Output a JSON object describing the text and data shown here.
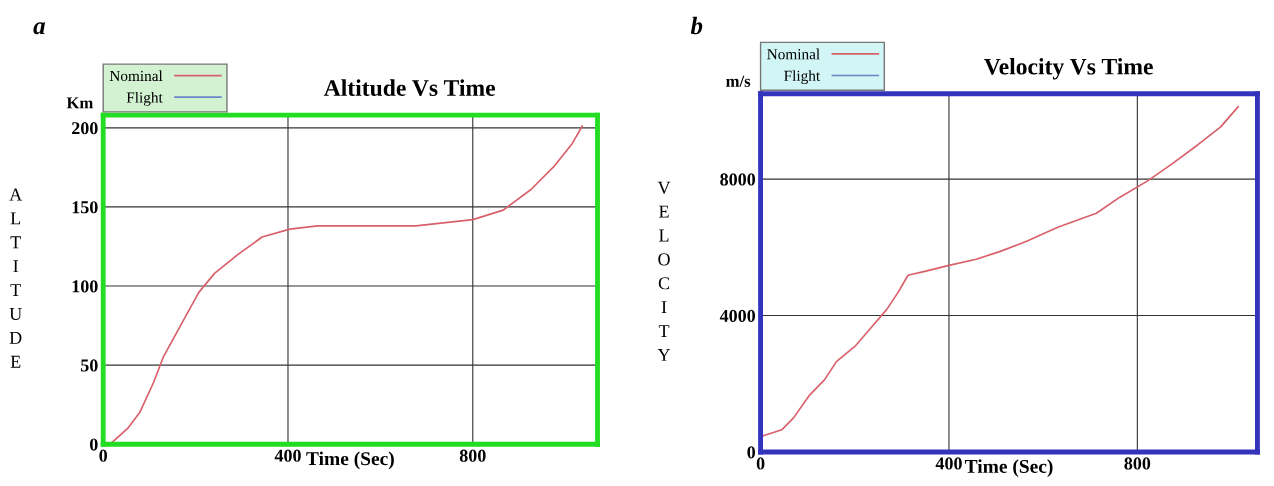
{
  "chart_data": [
    {
      "type": "line",
      "title": "Altitude Vs Time",
      "xlabel": "Time (Sec)",
      "ylabel": "ALTITUDE",
      "annotations": [
        "a",
        "Km"
      ],
      "x": [
        15,
        53,
        79,
        109,
        130,
        173,
        207,
        241,
        292,
        344,
        404,
        464,
        592,
        677,
        800,
        866,
        926,
        977,
        1015,
        1037
      ],
      "series": [
        {
          "name": "Flight",
          "color": "#6a84c8",
          "values": [
            null,
            null,
            null,
            null,
            null,
            null,
            null,
            null,
            null,
            null,
            null,
            null,
            null,
            null,
            null,
            null,
            null,
            null,
            null,
            null
          ]
        },
        {
          "name": "Nominal",
          "color": "#d9606a",
          "values": [
            0,
            10,
            20,
            39,
            55,
            78,
            96,
            108,
            120,
            131,
            136,
            138,
            138,
            138,
            142,
            148,
            161,
            176,
            190,
            201
          ]
        }
      ],
      "xlim": [
        0,
        1070
      ],
      "ylim": [
        0,
        208
      ],
      "xticks": [
        0,
        400,
        800
      ],
      "yticks": [
        0,
        50,
        100,
        150,
        200
      ],
      "grid": true,
      "legend": "top left"
    },
    {
      "type": "line",
      "title": "Velocity Vs Time",
      "xlabel": "Time (Sec)",
      "ylabel": "VELOCITY",
      "annotations": [
        "b",
        "m/s"
      ],
      "x": [
        4,
        45,
        70,
        103,
        136,
        161,
        202,
        235,
        268,
        293,
        313,
        351,
        400,
        458,
        509,
        565,
        631,
        713,
        763,
        821,
        870,
        928,
        977,
        1014
      ],
      "series": [
        {
          "name": "Flight",
          "color": "#6a84c8",
          "values": [
            null,
            null,
            null,
            null,
            null,
            null,
            null,
            null,
            null,
            null,
            null,
            null,
            null,
            null,
            null,
            null,
            null,
            null,
            null,
            null,
            null,
            null,
            null,
            null
          ]
        },
        {
          "name": "Nominal",
          "color": "#d9606a",
          "values": [
            470,
            650,
            1000,
            1650,
            2120,
            2650,
            3120,
            3650,
            4180,
            4700,
            5180,
            5300,
            5470,
            5650,
            5880,
            6180,
            6590,
            7000,
            7470,
            7940,
            8410,
            9000,
            9530,
            10120
          ]
        }
      ],
      "xlim": [
        0,
        1055
      ],
      "ylim": [
        0,
        10500
      ],
      "xticks": [
        0,
        400,
        800
      ],
      "yticks": [
        0,
        4000,
        8000
      ],
      "grid": true,
      "legend": "top left"
    }
  ]
}
